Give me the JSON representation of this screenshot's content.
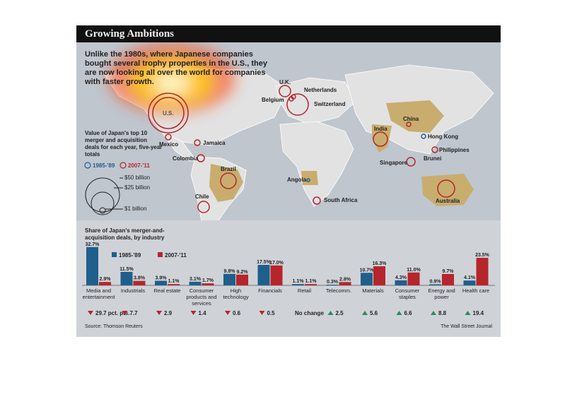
{
  "header": {
    "title": "Growing Ambitions"
  },
  "dek": "Unlike the 1980s, where Japanese companies bought several trophy properties in the U.S., they are now looking all over the world for companies with faster growth.",
  "map": {
    "labels": {
      "us": "U.S.",
      "uk": "U.K.",
      "netherlands": "Netherlands",
      "belgium": "Belgium",
      "switzerland": "Switzerland",
      "mexico": "Mexico",
      "jamaica": "Jamaica",
      "colombia": "Colombia",
      "brazil": "Brazil",
      "chile": "Chile",
      "angola": "Angola",
      "south_africa": "South Africa",
      "india": "India",
      "china": "China",
      "hong_kong": "Hong Kong",
      "philippines": "Philippines",
      "singapore": "Singapore",
      "brunei": "Brunei",
      "australia": "Australia"
    },
    "legend": {
      "title": "Value of Japan's top 10 merger and acquisition deals for each year, five-year totals",
      "period_a": "1985-'89",
      "period_b": "2007-'11",
      "sizes": [
        "$50 billion",
        "$25 billion",
        "$1 billion"
      ]
    }
  },
  "colors": {
    "blue": "#1f5f8c",
    "red": "#b5252b",
    "up": "#2e8b57",
    "down": "#b5252b"
  },
  "chart_data": {
    "type": "bar",
    "title": "Share of Japan's merger-and-acquisition deals, by industry",
    "categories": [
      "Media and entertainment",
      "Industrials",
      "Real estate",
      "Consumer products and services",
      "High technology",
      "Financials",
      "Retail",
      "Telecomm.",
      "Materials",
      "Consumer staples",
      "Energy and power",
      "Health care"
    ],
    "series": [
      {
        "name": "1985-'89",
        "values": [
          32.7,
          11.5,
          3.9,
          3.1,
          9.8,
          17.5,
          1.1,
          0.3,
          10.7,
          4.3,
          0.9,
          4.1
        ],
        "labels": [
          "32.7%",
          "11.5%",
          "3.9%",
          "3.1%",
          "9.8%",
          "17.5%",
          "1.1%",
          "0.3%",
          "10.7%",
          "4.3%",
          "0.9%",
          "4.1%"
        ]
      },
      {
        "name": "2007-'11",
        "values": [
          2.9,
          3.8,
          1.1,
          1.7,
          9.2,
          17.0,
          1.1,
          2.8,
          16.3,
          11.0,
          9.7,
          23.5
        ],
        "labels": [
          "2.9%",
          "3.8%",
          "1.1%",
          "1.7%",
          "9.2%",
          "17.0%",
          "1.1%",
          "2.8%",
          "16.3%",
          "11.0%",
          "9.7%",
          "23.5%"
        ]
      }
    ],
    "ylim": [
      0,
      35
    ],
    "changes": [
      {
        "dir": "down",
        "text": "29.7 pct. pts."
      },
      {
        "dir": "down",
        "text": "7.7"
      },
      {
        "dir": "down",
        "text": "2.9"
      },
      {
        "dir": "down",
        "text": "1.4"
      },
      {
        "dir": "down",
        "text": "0.6"
      },
      {
        "dir": "down",
        "text": "0.5"
      },
      {
        "dir": "none",
        "text": "No change"
      },
      {
        "dir": "up",
        "text": "2.5"
      },
      {
        "dir": "up",
        "text": "5.6"
      },
      {
        "dir": "up",
        "text": "6.6"
      },
      {
        "dir": "up",
        "text": "8.8"
      },
      {
        "dir": "up",
        "text": "19.4"
      }
    ]
  },
  "footer": {
    "source": "Source: Thomson Reuters",
    "credit": "The Wall Street Journal"
  }
}
